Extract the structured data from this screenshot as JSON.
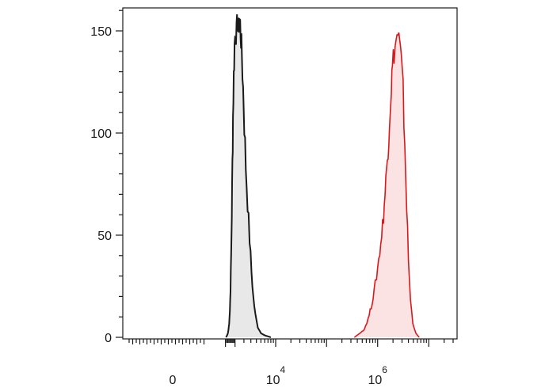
{
  "chart_data": {
    "type": "area",
    "title": "",
    "xlabel": "",
    "ylabel": "",
    "x_scale": "biexponential",
    "x_tick_labels": [
      {
        "label": "0",
        "value": 0
      },
      {
        "label": "10",
        "exp": "4",
        "value": 10000
      },
      {
        "label": "10",
        "exp": "6",
        "value": 1000000
      }
    ],
    "y_ticks": [
      0,
      50,
      100,
      150
    ],
    "ylim": [
      0,
      160
    ],
    "grid": false,
    "legend": "none",
    "series": [
      {
        "color": "#1a1a1a",
        "fill": "#e8e8e8",
        "peak_x": 1500,
        "peak_y": 157,
        "points": [
          [
            150,
            0
          ],
          [
            250,
            1
          ],
          [
            320,
            2
          ],
          [
            380,
            4
          ],
          [
            440,
            7
          ],
          [
            500,
            13
          ],
          [
            560,
            24
          ],
          [
            620,
            40
          ],
          [
            680,
            60
          ],
          [
            740,
            85
          ],
          [
            800,
            108
          ],
          [
            870,
            128
          ],
          [
            950,
            143
          ],
          [
            1050,
            151
          ],
          [
            1150,
            148
          ],
          [
            1250,
            155
          ],
          [
            1350,
            150
          ],
          [
            1450,
            157
          ],
          [
            1550,
            153
          ],
          [
            1650,
            146
          ],
          [
            1750,
            138
          ],
          [
            1900,
            122
          ],
          [
            2050,
            104
          ],
          [
            2250,
            84
          ],
          [
            2500,
            66
          ],
          [
            2800,
            48
          ],
          [
            3100,
            32
          ],
          [
            3400,
            20
          ],
          [
            3800,
            11
          ],
          [
            4300,
            5
          ],
          [
            5000,
            2
          ],
          [
            6000,
            1
          ],
          [
            8000,
            0
          ]
        ]
      },
      {
        "color": "#d7191c",
        "fill": "#fbe3e3",
        "peak_x": 2500000,
        "peak_y": 149,
        "points": [
          [
            350000,
            0
          ],
          [
            450000,
            2
          ],
          [
            550000,
            4
          ],
          [
            650000,
            9
          ],
          [
            750000,
            15
          ],
          [
            850000,
            22
          ],
          [
            950000,
            30
          ],
          [
            1050000,
            38
          ],
          [
            1150000,
            46
          ],
          [
            1250000,
            55
          ],
          [
            1350000,
            65
          ],
          [
            1450000,
            76
          ],
          [
            1550000,
            88
          ],
          [
            1650000,
            100
          ],
          [
            1750000,
            112
          ],
          [
            1850000,
            123
          ],
          [
            1950000,
            132
          ],
          [
            2100000,
            140
          ],
          [
            2300000,
            145
          ],
          [
            2500000,
            149
          ],
          [
            2700000,
            143
          ],
          [
            2900000,
            135
          ],
          [
            3150000,
            120
          ],
          [
            3400000,
            95
          ],
          [
            3700000,
            65
          ],
          [
            4000000,
            38
          ],
          [
            4400000,
            18
          ],
          [
            4900000,
            7
          ],
          [
            5600000,
            2
          ],
          [
            6500000,
            0
          ]
        ]
      }
    ]
  }
}
